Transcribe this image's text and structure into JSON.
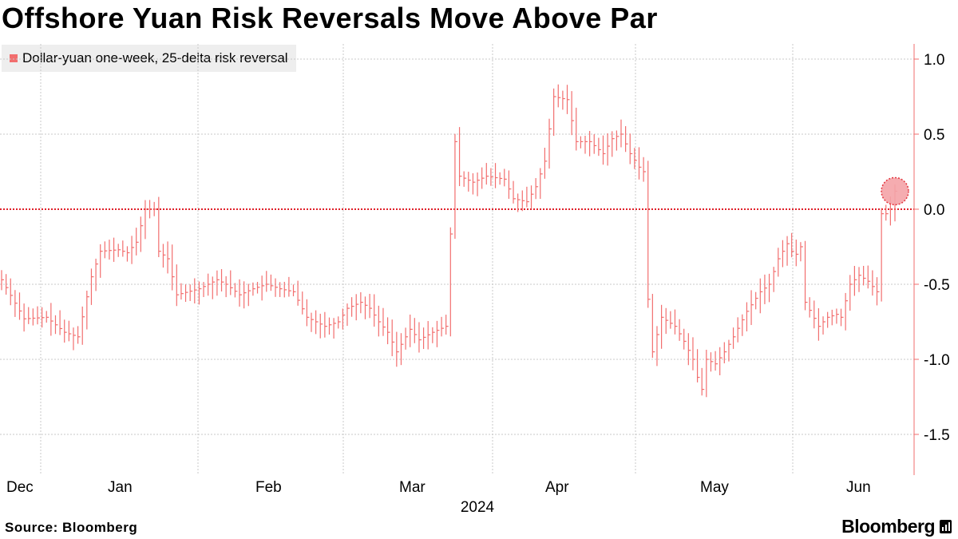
{
  "title": "Offshore Yuan Risk Reversals Move Above Par",
  "legend": {
    "label": "Dollar-yuan one-week, 25-delta risk reversal",
    "color": "#f26e6e"
  },
  "footer": {
    "source": "Source: Bloomberg",
    "brand": "Bloomberg",
    "brand_icon": "bloomberg-chart-icon"
  },
  "chart_data": {
    "type": "line",
    "title": "Offshore Yuan Risk Reversals Move Above Par",
    "series": [
      {
        "name": "Dollar-yuan one-week, 25-delta risk reversal",
        "color": "#f26e6e"
      }
    ],
    "ylim": [
      -1.75,
      1.1
    ],
    "yticks": [
      1.0,
      0.5,
      0.0,
      -0.5,
      -1.0,
      -1.5
    ],
    "ytick_labels": [
      "1.0",
      "0.5",
      "0.0",
      "-0.5",
      "-1.0",
      "-1.5"
    ],
    "xlabel": "2024",
    "ylabel": "",
    "x_ticks": [
      "Dec",
      "Jan",
      "Feb",
      "Mar",
      "Apr",
      "May",
      "Jun"
    ],
    "reference_line": {
      "y": 0.0,
      "style": "dotted"
    },
    "last_point_highlight": true,
    "anchors": [
      [
        0,
        -0.47
      ],
      [
        5,
        -0.73
      ],
      [
        10,
        -0.72
      ],
      [
        14,
        -0.82
      ],
      [
        17,
        -0.85
      ],
      [
        20,
        -0.45
      ],
      [
        22,
        -0.28
      ],
      [
        26,
        -0.27
      ],
      [
        28,
        -0.29
      ],
      [
        30,
        -0.22
      ],
      [
        32,
        0.0
      ],
      [
        34,
        0.0
      ],
      [
        35,
        -0.28
      ],
      [
        37,
        -0.33
      ],
      [
        39,
        -0.57
      ],
      [
        44,
        -0.53
      ],
      [
        48,
        -0.47
      ],
      [
        50,
        -0.5
      ],
      [
        53,
        -0.57
      ],
      [
        56,
        -0.53
      ],
      [
        59,
        -0.5
      ],
      [
        62,
        -0.53
      ],
      [
        65,
        -0.55
      ],
      [
        68,
        -0.72
      ],
      [
        72,
        -0.78
      ],
      [
        75,
        -0.75
      ],
      [
        77,
        -0.66
      ],
      [
        80,
        -0.62
      ],
      [
        82,
        -0.66
      ],
      [
        84,
        -0.75
      ],
      [
        86,
        -0.82
      ],
      [
        88,
        -0.95
      ],
      [
        91,
        -0.8
      ],
      [
        93,
        -0.87
      ],
      [
        96,
        -0.82
      ],
      [
        99,
        -0.78
      ],
      [
        101,
        0.45
      ],
      [
        102,
        0.22
      ],
      [
        105,
        0.18
      ],
      [
        108,
        0.22
      ],
      [
        112,
        0.2
      ],
      [
        114,
        0.07
      ],
      [
        117,
        0.05
      ],
      [
        119,
        0.15
      ],
      [
        121,
        0.32
      ],
      [
        123,
        0.75
      ],
      [
        126,
        0.73
      ],
      [
        128,
        0.45
      ],
      [
        131,
        0.45
      ],
      [
        134,
        0.37
      ],
      [
        136,
        0.47
      ],
      [
        138,
        0.5
      ],
      [
        140,
        0.37
      ],
      [
        142,
        0.28
      ],
      [
        143,
        0.25
      ],
      [
        144,
        -0.6
      ],
      [
        145,
        -0.95
      ],
      [
        147,
        -0.72
      ],
      [
        150,
        -0.78
      ],
      [
        152,
        -0.88
      ],
      [
        154,
        -1.0
      ],
      [
        155,
        -1.12
      ],
      [
        156,
        -1.2
      ],
      [
        157,
        -1.0
      ],
      [
        159,
        -1.03
      ],
      [
        161,
        -0.95
      ],
      [
        163,
        -0.85
      ],
      [
        166,
        -0.68
      ],
      [
        169,
        -0.55
      ],
      [
        171,
        -0.5
      ],
      [
        173,
        -0.33
      ],
      [
        175,
        -0.23
      ],
      [
        176,
        -0.28
      ],
      [
        177,
        -0.3
      ],
      [
        178,
        -0.25
      ],
      [
        179,
        -0.62
      ],
      [
        182,
        -0.78
      ],
      [
        184,
        -0.72
      ],
      [
        186,
        -0.7
      ],
      [
        187,
        -0.72
      ],
      [
        189,
        -0.5
      ],
      [
        191,
        -0.44
      ],
      [
        193,
        -0.48
      ],
      [
        195,
        -0.55
      ],
      [
        196,
        -0.03
      ],
      [
        197,
        -0.03
      ],
      [
        198,
        0.0
      ],
      [
        199,
        0.12
      ]
    ]
  }
}
